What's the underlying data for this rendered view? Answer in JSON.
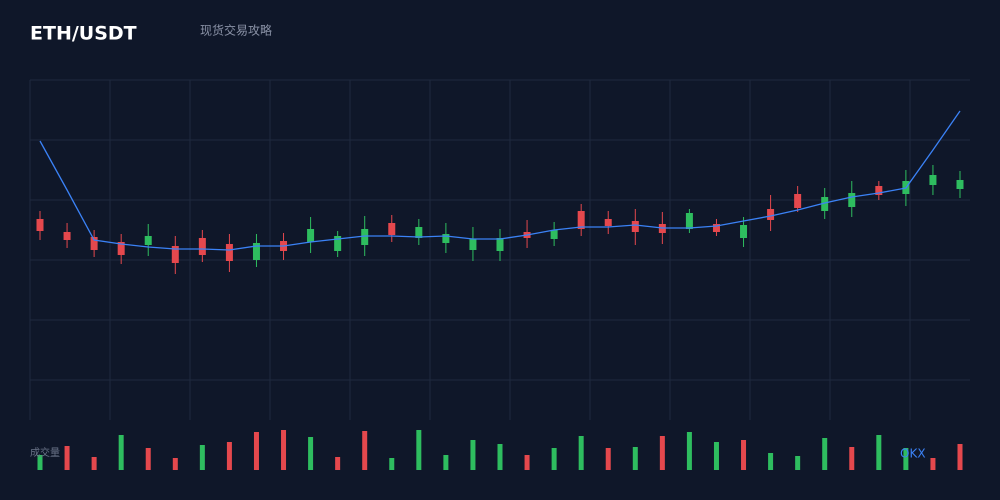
{
  "header": {
    "title": "ETH/USDT",
    "subtitle": "现货交易攻略"
  },
  "chart_data": {
    "type": "candlestick",
    "ylim": [
      0,
      340
    ],
    "yticks": [
      40,
      100,
      160,
      220,
      280,
      340
    ],
    "grid": true,
    "up_color": "#2ebd5f",
    "down_color": "#e5484d",
    "open": [
      201,
      188,
      183,
      178,
      175,
      174,
      182,
      176,
      160,
      179,
      178,
      169,
      175,
      197,
      182,
      177,
      170,
      169,
      188,
      181,
      209,
      201,
      199,
      196,
      191,
      196,
      182,
      211,
      226,
      209,
      213,
      234,
      226,
      235,
      231
    ],
    "close": [
      189,
      180,
      170,
      165,
      184,
      157,
      165,
      159,
      177,
      169,
      191,
      184,
      191,
      185,
      193,
      186,
      181,
      182,
      182,
      190,
      191,
      194,
      188,
      187,
      207,
      188,
      195,
      200,
      212,
      223,
      227,
      225,
      239,
      245,
      240
    ],
    "high": [
      209,
      197,
      190,
      186,
      196,
      184,
      190,
      186,
      186,
      187,
      203,
      189,
      204,
      205,
      201,
      197,
      193,
      191,
      200,
      198,
      216,
      209,
      211,
      208,
      211,
      201,
      203,
      225,
      234,
      232,
      239,
      239,
      250,
      255,
      249
    ],
    "low": [
      180,
      172,
      163,
      156,
      164,
      146,
      158,
      148,
      153,
      160,
      167,
      163,
      164,
      178,
      175,
      167,
      159,
      159,
      172,
      174,
      184,
      186,
      175,
      176,
      187,
      184,
      173,
      189,
      208,
      201,
      203,
      220,
      214,
      225,
      222
    ],
    "line": {
      "color": "#3b82f6",
      "values": [
        279,
        230,
        180,
        176,
        173,
        171,
        171,
        170,
        174,
        174,
        178,
        181,
        184,
        184,
        183,
        184,
        181,
        181,
        185,
        190,
        193,
        193,
        195,
        192,
        192,
        194,
        199,
        204,
        210,
        217,
        223,
        227,
        232,
        270,
        309
      ]
    },
    "volume": {
      "label": "成交量",
      "ylim": [
        0,
        50
      ],
      "values": [
        15,
        24,
        13,
        35,
        22,
        12,
        25,
        28,
        38,
        40,
        33,
        13,
        39,
        12,
        40,
        15,
        30,
        26,
        15,
        22,
        34,
        22,
        23,
        34,
        38,
        28,
        30,
        17,
        14,
        32,
        23,
        35,
        22,
        12,
        26
      ],
      "colors": [
        "#2ebd5f",
        "#e5484d",
        "#e5484d",
        "#2ebd5f",
        "#e5484d",
        "#e5484d",
        "#2ebd5f",
        "#e5484d",
        "#e5484d",
        "#e5484d",
        "#2ebd5f",
        "#e5484d",
        "#e5484d",
        "#2ebd5f",
        "#2ebd5f",
        "#2ebd5f",
        "#2ebd5f",
        "#2ebd5f",
        "#e5484d",
        "#2ebd5f",
        "#2ebd5f",
        "#e5484d",
        "#2ebd5f",
        "#e5484d",
        "#2ebd5f",
        "#2ebd5f",
        "#e5484d",
        "#2ebd5f",
        "#2ebd5f",
        "#2ebd5f",
        "#e5484d",
        "#2ebd5f",
        "#2ebd5f",
        "#e5484d",
        "#e5484d"
      ]
    },
    "watermark": "OKX"
  }
}
